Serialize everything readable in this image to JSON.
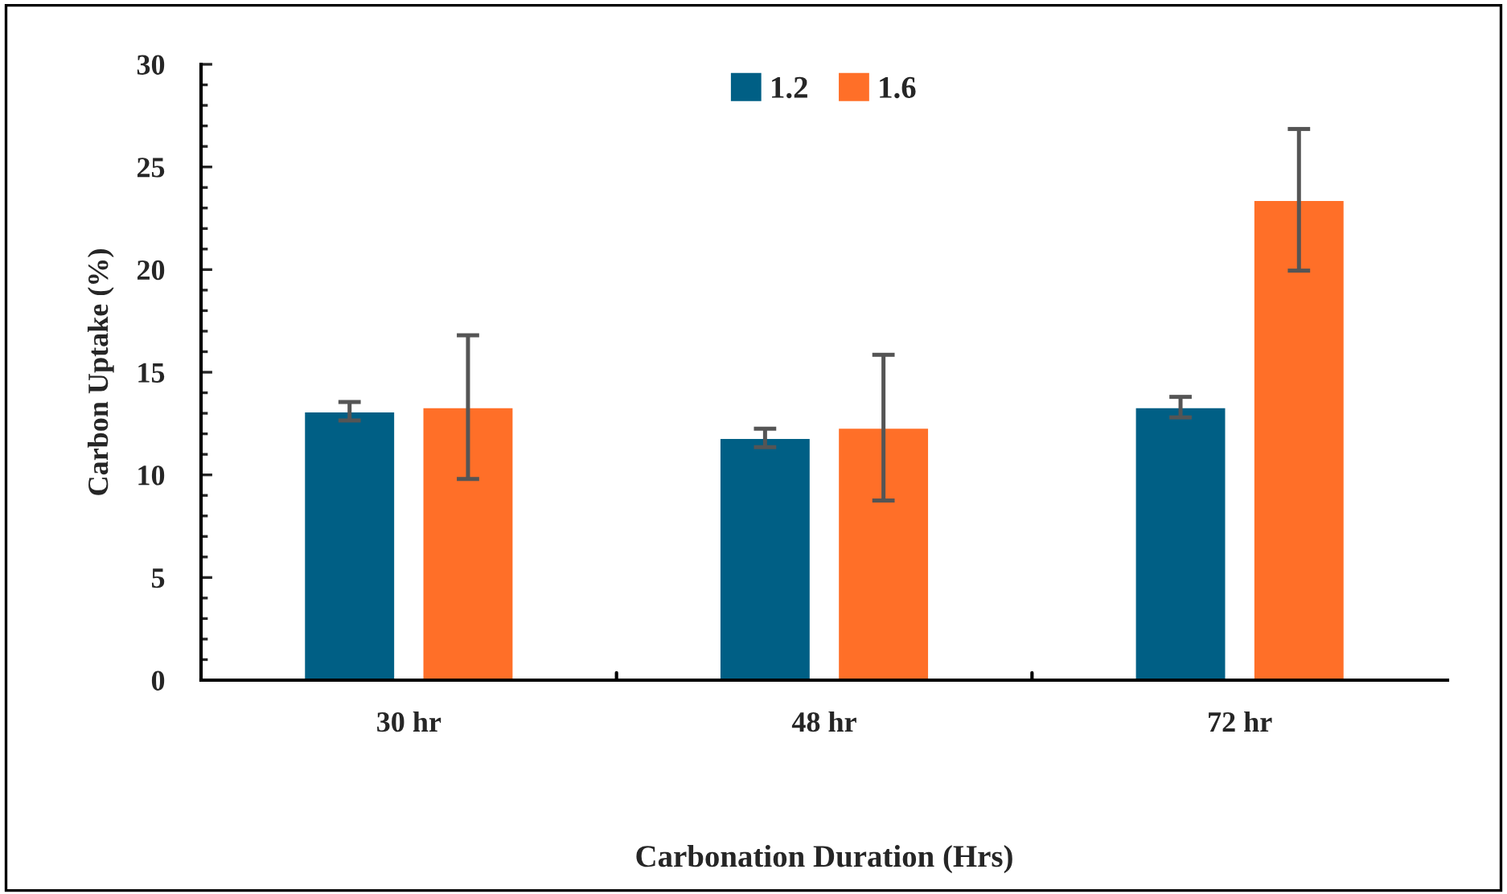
{
  "chart_data": {
    "type": "bar",
    "xlabel": "Carbonation Duration (Hrs)",
    "ylabel": "Carbon Uptake (%)",
    "categories": [
      "30 hr",
      "48 hr",
      "72 hr"
    ],
    "series": [
      {
        "name": "1.2",
        "color": "#005f85",
        "values": [
          13.1,
          11.8,
          13.3
        ],
        "errors": [
          0.45,
          0.45,
          0.5
        ]
      },
      {
        "name": "1.6",
        "color": "#ff6f28",
        "values": [
          13.3,
          12.3,
          23.4
        ],
        "errors": [
          3.5,
          3.55,
          3.45
        ]
      }
    ],
    "ylim": [
      0,
      30
    ],
    "yticks": [
      0,
      {
        "value": 1,
        "label": null
      },
      {
        "value": 2,
        "label": null
      },
      {
        "value": 3,
        "label": null
      },
      {
        "value": 4,
        "label": null
      },
      5,
      {
        "value": 6,
        "label": null
      },
      {
        "value": 7,
        "label": null
      },
      {
        "value": 8,
        "label": null
      },
      {
        "value": 9,
        "label": null
      },
      10,
      {
        "value": 11,
        "label": null
      },
      {
        "value": 12,
        "label": null
      },
      {
        "value": 13,
        "label": null
      },
      {
        "value": 14,
        "label": null
      },
      15,
      {
        "value": 16,
        "label": null
      },
      {
        "value": 17,
        "label": null
      },
      {
        "value": 18,
        "label": null
      },
      {
        "value": 19,
        "label": null
      },
      20,
      {
        "value": 21,
        "label": null
      },
      {
        "value": 22,
        "label": null
      },
      {
        "value": 23,
        "label": null
      },
      {
        "value": 24,
        "label": null
      },
      25,
      {
        "value": 26,
        "label": null
      },
      {
        "value": 27,
        "label": null
      },
      {
        "value": 28,
        "label": null
      },
      {
        "value": 29,
        "label": null
      },
      30
    ],
    "grid": false,
    "legend": "top"
  }
}
